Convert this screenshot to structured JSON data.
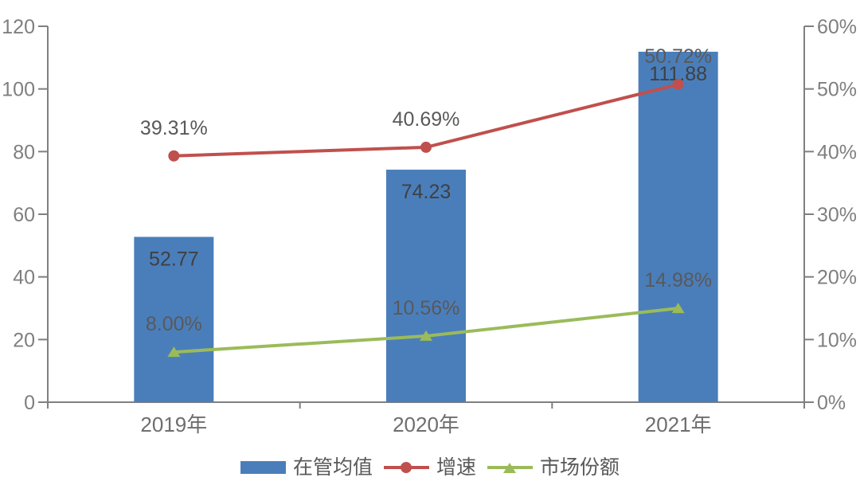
{
  "chart_data": {
    "type": "combo",
    "categories": [
      "2019年",
      "2020年",
      "2021年"
    ],
    "series": [
      {
        "name": "在管均值",
        "type": "bar",
        "axis": "left",
        "values": [
          52.77,
          74.23,
          111.88
        ],
        "labels": [
          "52.77",
          "74.23",
          "111.88"
        ],
        "color": "#4A7EBB"
      },
      {
        "name": "增速",
        "type": "line",
        "marker": "circle",
        "axis": "right",
        "values": [
          39.31,
          40.69,
          50.72
        ],
        "labels": [
          "39.31%",
          "40.69%",
          "50.72%"
        ],
        "color": "#C0504D"
      },
      {
        "name": "市场份额",
        "type": "line",
        "marker": "triangle",
        "axis": "right",
        "values": [
          8.0,
          10.56,
          14.98
        ],
        "labels": [
          "8.00%",
          "10.56%",
          "14.98%"
        ],
        "color": "#9BBB59"
      }
    ],
    "left_axis": {
      "min": 0,
      "max": 120,
      "step": 20,
      "tick_labels": [
        "0",
        "20",
        "40",
        "60",
        "80",
        "100",
        "120"
      ]
    },
    "right_axis": {
      "min": 0,
      "max": 60,
      "step": 10,
      "tick_labels": [
        "0%",
        "10%",
        "20%",
        "30%",
        "40%",
        "50%",
        "60%"
      ]
    },
    "legend": {
      "position": "bottom",
      "items": [
        "在管均值",
        "增速",
        "市场份额"
      ]
    },
    "grid": false,
    "colors": {
      "axis_line": "#808080",
      "axis_text": "#7F7F7F",
      "category_text": "#6E6E6E",
      "data_label_text": "#595959",
      "bar_label_text": "#404040",
      "background": "#FFFFFF"
    }
  }
}
